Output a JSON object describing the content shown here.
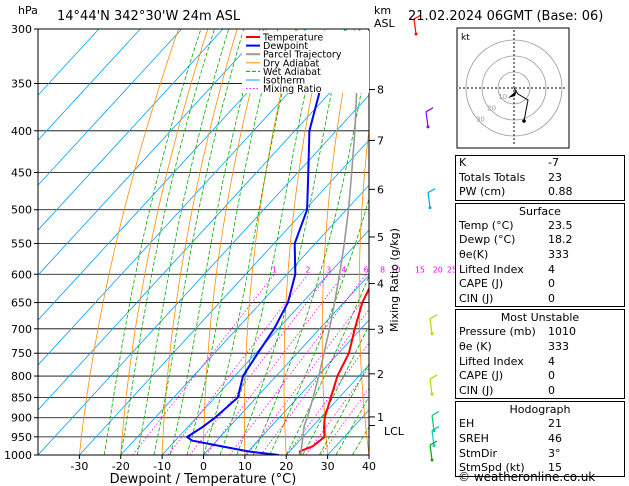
{
  "header": {
    "hpa_label": "hPa",
    "location": "14°44'N  342°30'W  24m  ASL",
    "km_label": "km",
    "asl_label": "ASL",
    "datetime": "21.02.2024  06GMT  (Base: 06)"
  },
  "colors": {
    "temperature": "#ff0000",
    "dewpoint": "#0000ff",
    "parcel": "#999999",
    "dry_adiabat": "#ff8c00",
    "wet_adiabat": "#00aa00",
    "isotherm": "#00a0ff",
    "mixing_ratio": "#ff00ff"
  },
  "chart_data": {
    "type": "line",
    "title": "",
    "xlabel": "Dewpoint / Temperature (°C)",
    "ylabel": "Mixing Ratio (g/kg)",
    "x_ticks": [
      -30,
      -20,
      -10,
      0,
      10,
      20,
      30,
      40
    ],
    "pressure_levels": [
      300,
      350,
      400,
      450,
      500,
      550,
      600,
      650,
      700,
      750,
      800,
      850,
      900,
      950,
      1000
    ],
    "km_ticks": [
      {
        "label": "8",
        "p": 356
      },
      {
        "label": "7",
        "p": 411
      },
      {
        "label": "6",
        "p": 472
      },
      {
        "label": "5",
        "p": 540
      },
      {
        "label": "4",
        "p": 616
      },
      {
        "label": "3",
        "p": 701
      },
      {
        "label": "2",
        "p": 795
      },
      {
        "label": "1",
        "p": 898
      }
    ],
    "lcl_label": "LCL",
    "lcl_p": 920,
    "mixing_ratio_labels": [
      "1",
      "2",
      "3",
      "4",
      "6",
      "8",
      "10",
      "15",
      "20",
      "25"
    ],
    "legend": [
      "Temperature",
      "Dewpoint",
      "Parcel Trajectory",
      "Dry Adiabat",
      "Wet Adiabat",
      "Isotherm",
      "Mixing Ratio"
    ],
    "series": [
      {
        "name": "Temperature",
        "points": [
          [
            1000,
            23.5
          ],
          [
            990,
            22.5
          ],
          [
            975,
            24.5
          ],
          [
            950,
            25.2
          ],
          [
            925,
            23.0
          ],
          [
            900,
            21.0
          ],
          [
            850,
            18.0
          ],
          [
            800,
            14.8
          ],
          [
            750,
            12.5
          ],
          [
            700,
            8.5
          ],
          [
            650,
            4.5
          ],
          [
            600,
            1.5
          ],
          [
            550,
            -0.2
          ],
          [
            500,
            -5.5
          ],
          [
            450,
            -12.0
          ],
          [
            400,
            -19.5
          ],
          [
            350,
            -28.0
          ],
          [
            300,
            -37.0
          ]
        ]
      },
      {
        "name": "Dewpoint",
        "points": [
          [
            1000,
            18.2
          ],
          [
            990,
            10.0
          ],
          [
            975,
            2.0
          ],
          [
            960,
            -6.0
          ],
          [
            950,
            -8.0
          ],
          [
            925,
            -6.5
          ],
          [
            900,
            -5.5
          ],
          [
            850,
            -4.5
          ],
          [
            800,
            -8.0
          ],
          [
            750,
            -9.5
          ],
          [
            700,
            -11.0
          ],
          [
            650,
            -13.5
          ],
          [
            600,
            -18.0
          ],
          [
            550,
            -25.0
          ],
          [
            500,
            -29.5
          ],
          [
            450,
            -37.5
          ],
          [
            400,
            -46.5
          ],
          [
            350,
            -54.0
          ],
          [
            300,
            -32.0
          ]
        ]
      },
      {
        "name": "Parcel Trajectory",
        "points": [
          [
            1000,
            23.5
          ],
          [
            950,
            20.0
          ],
          [
            920,
            17.8
          ],
          [
            900,
            16.8
          ],
          [
            850,
            13.7
          ],
          [
            800,
            10.3
          ],
          [
            750,
            6.5
          ],
          [
            700,
            2.4
          ],
          [
            650,
            -2.2
          ],
          [
            600,
            -7.3
          ],
          [
            550,
            -13.0
          ],
          [
            500,
            -19.5
          ],
          [
            450,
            -27.0
          ],
          [
            400,
            -35.5
          ],
          [
            350,
            -45.5
          ],
          [
            300,
            -57.0
          ]
        ]
      }
    ]
  },
  "hodograph": {
    "label": "kt",
    "ring_labels": [
      "10",
      "20",
      "30"
    ]
  },
  "indices": {
    "top": [
      {
        "k": "K",
        "v": "-7"
      },
      {
        "k": "Totals Totals",
        "v": "23"
      },
      {
        "k": "PW (cm)",
        "v": "0.88"
      }
    ],
    "surface": {
      "title": "Surface",
      "rows": [
        {
          "k": "Temp (°C)",
          "v": "23.5"
        },
        {
          "k": "Dewp (°C)",
          "v": "18.2"
        },
        {
          "k": "θe(K)",
          "v": "333"
        },
        {
          "k": "Lifted Index",
          "v": "4"
        },
        {
          "k": "CAPE (J)",
          "v": "0"
        },
        {
          "k": "CIN (J)",
          "v": "0"
        }
      ]
    },
    "most_unstable": {
      "title": "Most Unstable",
      "rows": [
        {
          "k": "Pressure (mb)",
          "v": "1010"
        },
        {
          "k": "θe (K)",
          "v": "333"
        },
        {
          "k": "Lifted Index",
          "v": "4"
        },
        {
          "k": "CAPE (J)",
          "v": "0"
        },
        {
          "k": "CIN (J)",
          "v": "0"
        }
      ]
    },
    "hodograph_box": {
      "title": "Hodograph",
      "rows": [
        {
          "k": "EH",
          "v": "21"
        },
        {
          "k": "SREH",
          "v": "46"
        },
        {
          "k": "StmDir",
          "v": "3°"
        },
        {
          "k": "StmSpd (kt)",
          "v": "15"
        }
      ]
    }
  },
  "footer": {
    "text": "© weatheronline.co.uk"
  }
}
